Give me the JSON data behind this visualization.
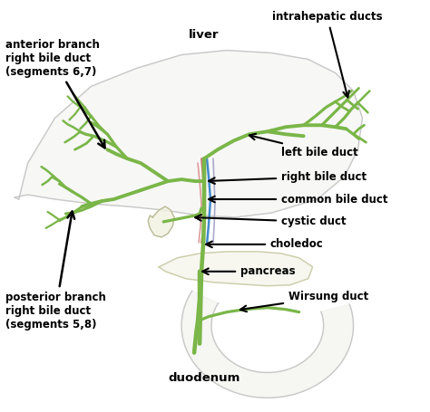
{
  "background_color": "#ffffff",
  "duct_color": "#7ab648",
  "duct_lw": 2.8,
  "organ_outline": "#cccccc",
  "labels": {
    "anterior_branch": "anterior branch\nright bile duct\n(segments 6,7)",
    "posterior_branch": "posterior branch\nright bile duct\n(segments 5,8)",
    "intrahepatic": "intrahepatic ducts",
    "liver": "liver",
    "left_bile": "left bile duct",
    "right_bile": "right bile duct",
    "common_bile": "common bile duct",
    "cystic": "cystic duct",
    "choledoc": "choledoc",
    "pancreas": "pancreas",
    "wirsung": "Wirsung duct",
    "duodenum": "duodenum"
  }
}
